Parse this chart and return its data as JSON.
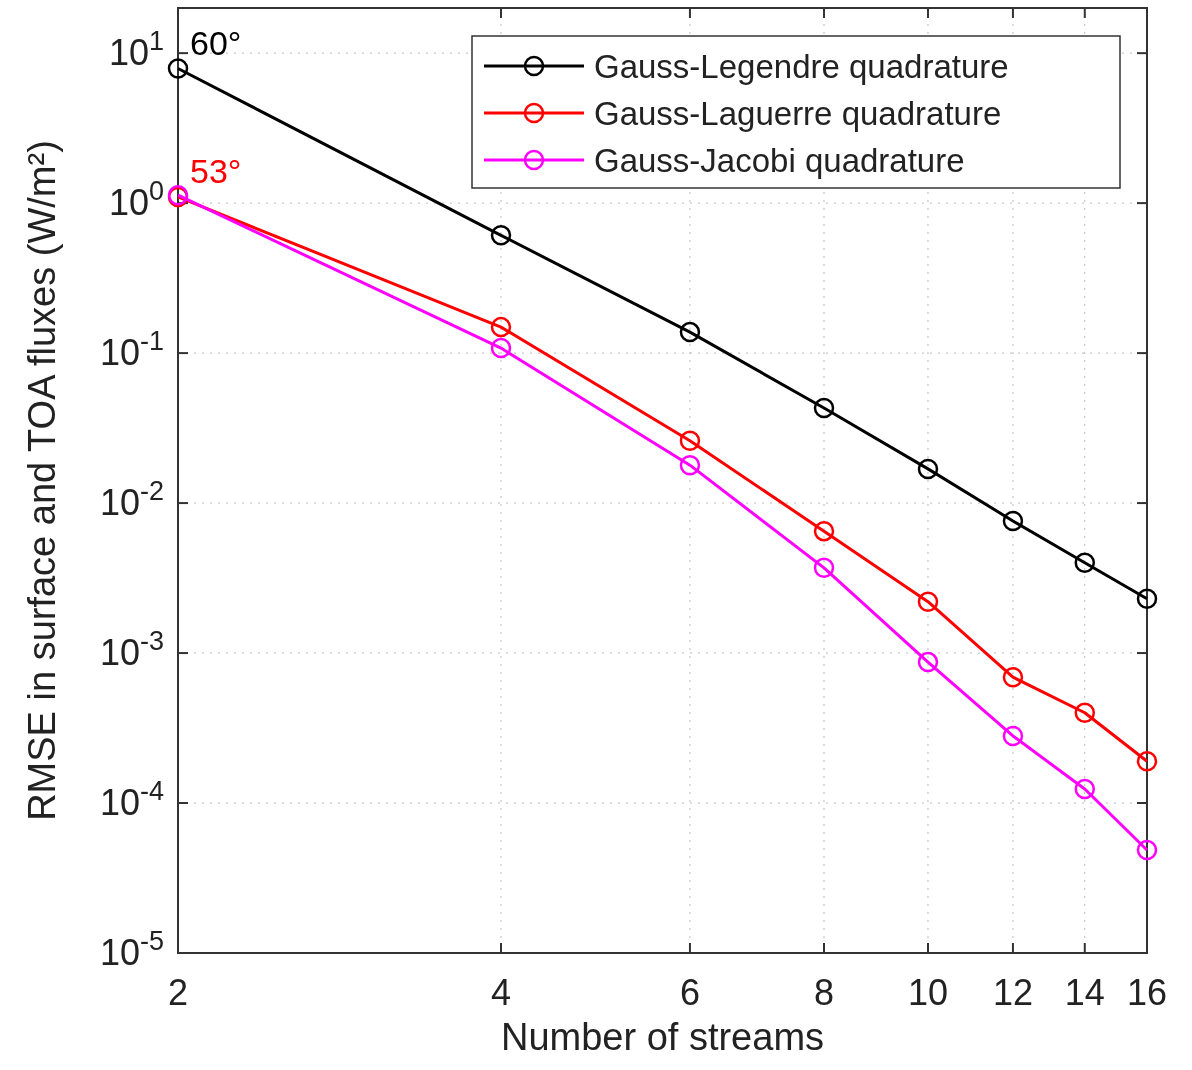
{
  "chart_data": {
    "type": "line",
    "xlabel": "Number of streams",
    "ylabel": "RMSE in surface and TOA fluxes (W/m²)",
    "x": [
      2,
      4,
      6,
      8,
      10,
      12,
      14,
      16
    ],
    "series": [
      {
        "name": "Gauss-Legendre quadrature",
        "color": "#000000",
        "values": [
          7.9,
          0.61,
          0.138,
          0.043,
          0.0169,
          0.0076,
          0.004,
          0.0023
        ]
      },
      {
        "name": "Gauss-Laguerre quadrature",
        "color": "#ff0000",
        "values": [
          1.1,
          0.149,
          0.026,
          0.0065,
          0.0022,
          0.00069,
          0.0004,
          0.00019
        ]
      },
      {
        "name": "Gauss-Jacobi quadrature",
        "color": "#ff00ff",
        "values": [
          1.13,
          0.108,
          0.0179,
          0.0037,
          0.00087,
          0.00028,
          0.000124,
          4.86e-05
        ]
      }
    ],
    "log": "xy",
    "xlim": [
      2,
      16
    ],
    "xticks": [
      2,
      4,
      6,
      8,
      10,
      12,
      14,
      16
    ],
    "ylim": [
      1e-05,
      20
    ],
    "yticks": [
      {
        "value": 1e-05,
        "label": "10$^{-5}$"
      },
      {
        "value": 0.0001,
        "label": "10$^{-4}$"
      },
      {
        "value": 0.001,
        "label": "10$^{-3}$"
      },
      {
        "value": 0.01,
        "label": "10$^{-2}$"
      },
      {
        "value": 0.1,
        "label": "10$^{-1}$"
      },
      {
        "value": 1,
        "label": "10$^{0}$"
      },
      {
        "value": 10,
        "label": "10$^{1}$"
      }
    ],
    "grid": true,
    "legend": "top right",
    "marker": "circle",
    "line_style": "solid",
    "annotations": [
      {
        "text": "60°",
        "x": 2,
        "y": 7.9
      },
      {
        "text": "53°",
        "x": 2,
        "y": 1.1
      }
    ]
  }
}
